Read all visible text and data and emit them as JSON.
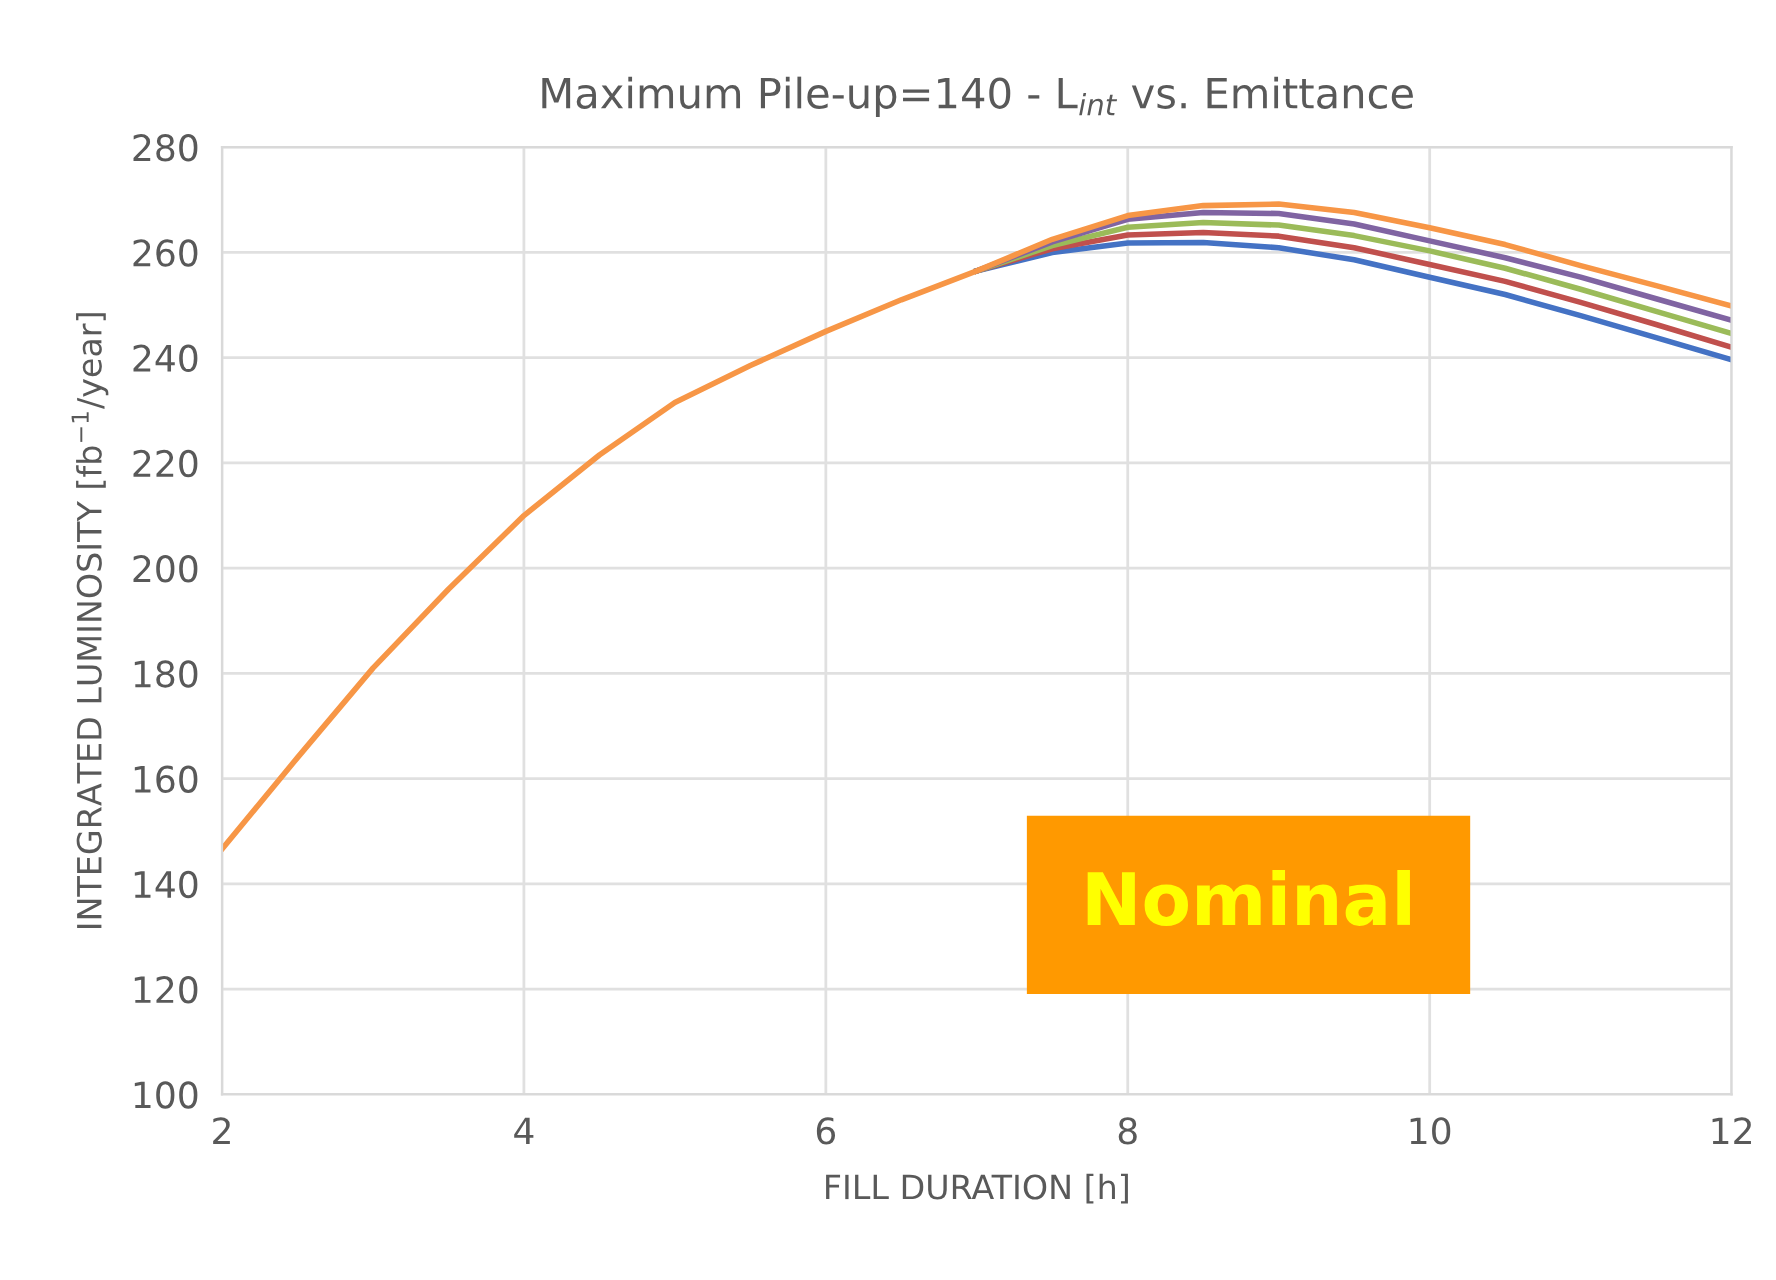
{
  "chart_data": {
    "type": "line",
    "title": "Maximum Pile-up=140 - L$_{int}$ vs. Emittance",
    "xlabel": "FILL DURATION [h]",
    "ylabel": "INTEGRATED LUMINOSITY [fb$^{−1}$/year]",
    "x": [
      2,
      2.5,
      3,
      3.5,
      4,
      4.5,
      5,
      5.5,
      6,
      6.5,
      7,
      7.5,
      8,
      8.5,
      9,
      9.5,
      10,
      10.5,
      11,
      11.5,
      12
    ],
    "series": [
      {
        "color": "#4472c4",
        "values": [
          null,
          null,
          null,
          null,
          null,
          null,
          null,
          null,
          null,
          null,
          256.5,
          260,
          261.8,
          261.9,
          260.9,
          258.6,
          255.3,
          252,
          248,
          243.8,
          239.6
        ]
      },
      {
        "color": "#c0504d",
        "values": [
          null,
          null,
          null,
          null,
          null,
          null,
          null,
          null,
          null,
          null,
          256.5,
          260.7,
          263.3,
          263.8,
          263.1,
          260.9,
          257.7,
          254.5,
          250.5,
          246.3,
          242.0
        ]
      },
      {
        "color": "#9bbb59",
        "values": [
          null,
          null,
          null,
          null,
          null,
          null,
          null,
          null,
          null,
          null,
          256.5,
          261.3,
          264.8,
          265.7,
          265.2,
          263.2,
          260.3,
          257,
          253,
          248.8,
          244.6
        ]
      },
      {
        "color": "#8064a2",
        "values": [
          null,
          null,
          null,
          null,
          null,
          null,
          null,
          null,
          null,
          null,
          256.5,
          262,
          266.3,
          267.6,
          267.4,
          265.4,
          262.2,
          259,
          255.3,
          251.2,
          247.1
        ]
      },
      {
        "color": "#f79646",
        "values": [
          146.6,
          164,
          181,
          196,
          210,
          221.5,
          231.5,
          238.5,
          245,
          251,
          256.5,
          262.5,
          267,
          268.9,
          269.2,
          267.6,
          264.7,
          261.5,
          257.5,
          253.7,
          249.8
        ]
      }
    ],
    "xlim": [
      2,
      12
    ],
    "xticks": [
      2,
      4,
      6,
      8,
      10,
      12
    ],
    "ylim": [
      100,
      280
    ],
    "yticks": [
      100,
      120,
      140,
      160,
      180,
      200,
      220,
      240,
      260,
      280
    ],
    "grid": true,
    "marker": "none",
    "line_style": "solid",
    "annotations": [
      "Nominal"
    ]
  }
}
